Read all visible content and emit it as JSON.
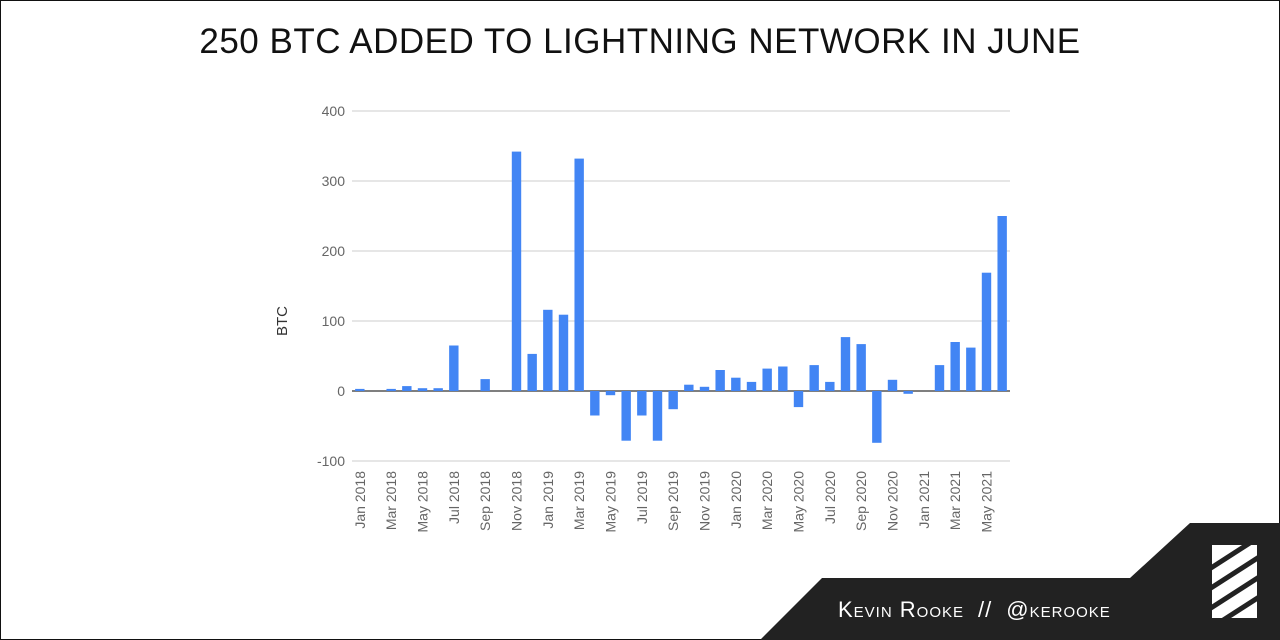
{
  "title": "250 BTC ADDED TO LIGHTNING NETWORK IN JUNE",
  "credit": {
    "author": "Kevin Rooke",
    "separator": "//",
    "handle": "@kerooke"
  },
  "colors": {
    "bar": "#4285f4",
    "grid": "#cccccc",
    "axis": "#333333",
    "tick_text": "#666666",
    "footer": "#222222"
  },
  "icons": {
    "logo": "striped-square-logo-icon"
  },
  "chart_data": {
    "type": "bar",
    "title": "250 BTC ADDED TO LIGHTNING NETWORK IN JUNE",
    "xlabel": "",
    "ylabel": "BTC",
    "ylim": [
      -100,
      400
    ],
    "yticks": [
      -100,
      0,
      100,
      200,
      300,
      400
    ],
    "grid": true,
    "legend": "none",
    "categories": [
      "Jan 2018",
      "Feb 2018",
      "Mar 2018",
      "Apr 2018",
      "May 2018",
      "Jun 2018",
      "Jul 2018",
      "Aug 2018",
      "Sep 2018",
      "Oct 2018",
      "Nov 2018",
      "Dec 2018",
      "Jan 2019",
      "Feb 2019",
      "Mar 2019",
      "Apr 2019",
      "May 2019",
      "Jun 2019",
      "Jul 2019",
      "Aug 2019",
      "Sep 2019",
      "Oct 2019",
      "Nov 2019",
      "Dec 2019",
      "Jan 2020",
      "Feb 2020",
      "Mar 2020",
      "Apr 2020",
      "May 2020",
      "Jun 2020",
      "Jul 2020",
      "Aug 2020",
      "Sep 2020",
      "Oct 2020",
      "Nov 2020",
      "Dec 2020",
      "Jan 2021",
      "Feb 2021",
      "Mar 2021",
      "Apr 2021",
      "May 2021",
      "Jun 2021"
    ],
    "tick_labels": [
      "Jan 2018",
      "Mar 2018",
      "May 2018",
      "Jul 2018",
      "Sep 2018",
      "Nov 2018",
      "Jan 2019",
      "Mar 2019",
      "May 2019",
      "Jul 2019",
      "Sep 2019",
      "Nov 2019",
      "Jan 2020",
      "Mar 2020",
      "May 2020",
      "Jul 2020",
      "Sep 2020",
      "Nov 2020",
      "Jan 2021",
      "Mar 2021",
      "May 2021"
    ],
    "values": [
      3,
      0,
      3,
      7,
      4,
      4,
      65,
      0,
      17,
      0,
      342,
      53,
      116,
      109,
      332,
      -35,
      -6,
      -71,
      -35,
      -71,
      -26,
      9,
      6,
      30,
      19,
      13,
      32,
      35,
      -23,
      37,
      13,
      77,
      67,
      -74,
      16,
      -4,
      0,
      37,
      70,
      62,
      169,
      250
    ]
  }
}
